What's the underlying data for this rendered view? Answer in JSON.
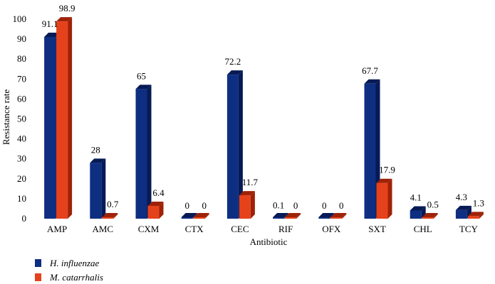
{
  "chart_data": {
    "type": "bar",
    "style": "3d-clustered",
    "categories": [
      "AMP",
      "AMC",
      "CXM",
      "CTX",
      "CEC",
      "RIF",
      "OFX",
      "SXT",
      "CHL",
      "TCY"
    ],
    "series": [
      {
        "name": "H. influenzae",
        "color": "#0E2E82",
        "side_color": "#061A55",
        "values": [
          91.1,
          28,
          65,
          0,
          72.2,
          0.1,
          0,
          67.7,
          4.1,
          4.3
        ],
        "labels": [
          "91.1",
          "28",
          "65",
          "0",
          "72.2",
          "0.1",
          "0",
          "67.7",
          "4.1",
          "4.3"
        ]
      },
      {
        "name": "M. catarrhalis",
        "color": "#E5421C",
        "side_color": "#9E2208",
        "values": [
          98.9,
          0.7,
          6.4,
          0,
          11.7,
          0,
          0,
          17.9,
          0.5,
          1.3
        ],
        "labels": [
          "98.9",
          "0.7",
          "6.4",
          "0",
          "11.7",
          "0",
          "0",
          "17.9",
          "0.5",
          "1.3"
        ]
      }
    ],
    "xlabel": "Antibiotic",
    "ylabel": "Resistance rate",
    "ylim": [
      0,
      100
    ],
    "yticks": [
      "0",
      "10",
      "20",
      "30",
      "40",
      "50",
      "60",
      "70",
      "80",
      "90",
      "100"
    ],
    "grid": false,
    "legend": "bottom-left"
  }
}
